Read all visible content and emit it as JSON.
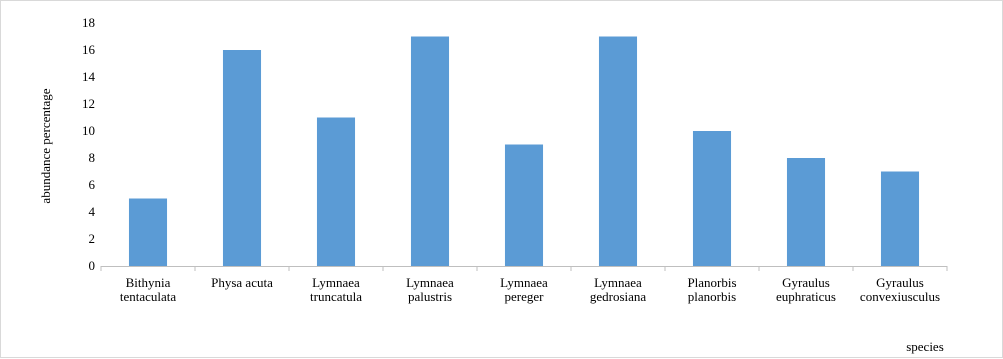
{
  "chart_data": {
    "type": "bar",
    "title": "",
    "xlabel": "species",
    "ylabel": "abundance percentage",
    "ylim": [
      0,
      18
    ],
    "yticks": [
      0,
      2,
      4,
      6,
      8,
      10,
      12,
      14,
      16,
      18
    ],
    "grid": false,
    "legend": "none",
    "bar_color": "#5b9bd5",
    "categories": [
      [
        "Bithynia",
        "tentaculata"
      ],
      [
        "Physa acuta"
      ],
      [
        "Lymnaea",
        "truncatula"
      ],
      [
        "Lymnaea",
        "palustris"
      ],
      [
        "Lymnaea",
        "pereger"
      ],
      [
        "Lymnaea",
        "gedrosiana"
      ],
      [
        "Planorbis",
        "planorbis"
      ],
      [
        "Gyraulus",
        "euphraticus"
      ],
      [
        "Gyraulus",
        "convexiusculus"
      ]
    ],
    "values": [
      5,
      16,
      11,
      17,
      9,
      17,
      10,
      8,
      7
    ]
  }
}
